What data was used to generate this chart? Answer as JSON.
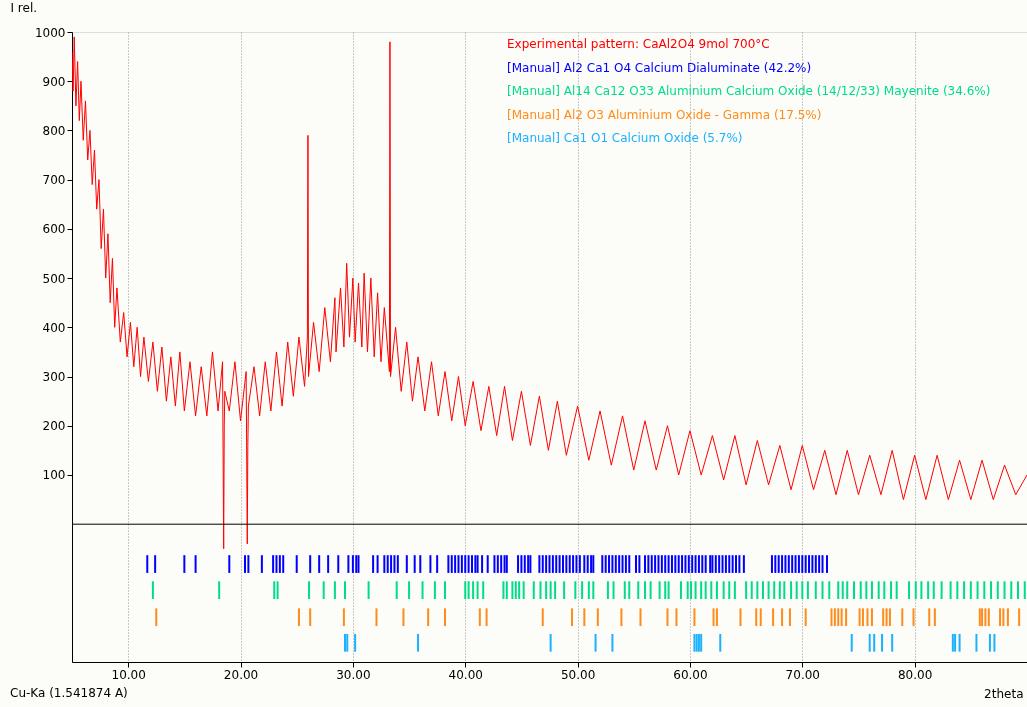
{
  "chart_data": {
    "type": "line",
    "xlabel": "2theta",
    "ylabel": "I rel.",
    "annotations": [
      "Cu-Ka (1.541874 A)"
    ],
    "xlim": [
      5,
      90
    ],
    "ylim": [
      -280,
      1000
    ],
    "xticks": [
      {
        "value": 10,
        "label": "10.00"
      },
      {
        "value": 20,
        "label": "20.00"
      },
      {
        "value": 30,
        "label": "30.00"
      },
      {
        "value": 40,
        "label": "40.00"
      },
      {
        "value": 50,
        "label": "50.00"
      },
      {
        "value": 60,
        "label": "60.00"
      },
      {
        "value": 70,
        "label": "70.00"
      },
      {
        "value": 80,
        "label": "80.00"
      }
    ],
    "yticks": [
      100,
      200,
      300,
      400,
      500,
      600,
      700,
      800,
      900,
      1000
    ],
    "grid": "x",
    "legend": "top right",
    "ref_lines": [
      {
        "axis": "y",
        "value": 0,
        "color": "#000000"
      }
    ],
    "series": [
      {
        "name": "Experimental pattern: CaAl2O4 9mol 700°C",
        "color": "#ff0000",
        "x": [
          5.0,
          5.1,
          5.2,
          5.35,
          5.5,
          5.65,
          5.8,
          6.0,
          6.2,
          6.4,
          6.6,
          6.8,
          7.0,
          7.2,
          7.4,
          7.6,
          7.8,
          8.0,
          8.2,
          8.4,
          8.6,
          8.8,
          9.0,
          9.3,
          9.6,
          9.9,
          10.2,
          10.5,
          10.8,
          11.1,
          11.4,
          11.8,
          12.2,
          12.6,
          13.0,
          13.4,
          13.8,
          14.2,
          14.6,
          15.0,
          15.5,
          16.0,
          16.5,
          17.0,
          17.5,
          18.0,
          18.4,
          18.5,
          18.55,
          18.6,
          19.0,
          19.5,
          20.0,
          20.5,
          20.6,
          20.65,
          20.7,
          21.2,
          21.7,
          22.2,
          22.7,
          23.2,
          23.7,
          24.2,
          24.7,
          25.2,
          25.7,
          25.95,
          26.0,
          26.05,
          26.5,
          27.0,
          27.5,
          28.0,
          28.4,
          28.5,
          28.9,
          29.2,
          29.45,
          29.7,
          30.0,
          30.2,
          30.5,
          30.8,
          31.0,
          31.3,
          31.6,
          31.9,
          32.2,
          32.5,
          32.8,
          33.25,
          33.3,
          33.35,
          33.8,
          34.3,
          34.8,
          35.3,
          35.8,
          36.4,
          37.0,
          37.6,
          38.2,
          38.8,
          39.4,
          40.0,
          40.7,
          41.4,
          42.1,
          42.8,
          43.5,
          44.2,
          45.0,
          45.8,
          46.6,
          47.4,
          48.2,
          49.0,
          50.0,
          51.0,
          52.0,
          53.0,
          54.0,
          55.0,
          56.0,
          57.0,
          58.0,
          59.0,
          60.0,
          61.0,
          62.0,
          63.0,
          64.0,
          65.0,
          66.0,
          67.0,
          68.0,
          69.0,
          70.0,
          71.0,
          72.0,
          73.0,
          74.0,
          75.0,
          76.0,
          77.0,
          78.0,
          79.0,
          80.0,
          81.0,
          82.0,
          83.0,
          84.0,
          85.0,
          86.0,
          87.0,
          88.0,
          89.0,
          90.0
        ],
        "values": [
          960,
          880,
          990,
          850,
          940,
          820,
          900,
          780,
          860,
          740,
          800,
          690,
          760,
          640,
          700,
          560,
          640,
          500,
          590,
          450,
          540,
          400,
          480,
          370,
          430,
          340,
          410,
          320,
          400,
          300,
          380,
          290,
          370,
          270,
          360,
          250,
          340,
          240,
          350,
          230,
          330,
          220,
          320,
          220,
          350,
          230,
          330,
          -50,
          200,
          270,
          230,
          330,
          210,
          310,
          -40,
          160,
          240,
          320,
          220,
          330,
          230,
          350,
          240,
          370,
          260,
          380,
          280,
          380,
          790,
          300,
          410,
          310,
          440,
          330,
          460,
          350,
          480,
          360,
          530,
          380,
          500,
          370,
          490,
          360,
          510,
          350,
          500,
          340,
          470,
          330,
          440,
          310,
          980,
          300,
          400,
          270,
          370,
          250,
          340,
          230,
          330,
          220,
          310,
          210,
          300,
          200,
          290,
          190,
          280,
          180,
          280,
          170,
          270,
          160,
          260,
          150,
          250,
          140,
          240,
          130,
          230,
          120,
          220,
          110,
          210,
          110,
          200,
          100,
          190,
          100,
          180,
          90,
          180,
          80,
          170,
          80,
          160,
          70,
          160,
          70,
          150,
          60,
          150,
          60,
          140,
          60,
          150,
          50,
          140,
          50,
          140,
          50,
          130,
          50,
          130,
          50,
          120,
          60,
          100
        ]
      },
      {
        "name": "[Manual] Al2 Ca1 O4 Calcium Dialuminate (42.2%)",
        "type": "bar",
        "color": "#0000ff",
        "base": [
          -99,
          -99,
          -99,
          -99,
          -99,
          -99,
          -99,
          -99,
          -99,
          -99,
          -99,
          -99,
          -99,
          -99,
          -99,
          -99,
          -99,
          -99,
          -99,
          -99,
          -99,
          -99,
          -99,
          -99,
          -99,
          -99,
          -99,
          -99,
          -99,
          -99,
          -99,
          -99,
          -99,
          -99,
          -99,
          -99,
          -99,
          -99,
          -99,
          -99,
          -99,
          -99,
          -99,
          -99,
          -99,
          -99,
          -99,
          -99,
          -99,
          -99,
          -99,
          -99,
          -99,
          -99,
          -99,
          -99,
          -99,
          -99,
          -99,
          -99,
          -99,
          -99,
          -99,
          -99,
          -99,
          -99,
          -99,
          -99,
          -99,
          -99,
          -99,
          -99,
          -99,
          -99,
          -99,
          -99,
          -99,
          -99,
          -99,
          -99,
          -99,
          -99,
          -99,
          -99,
          -99,
          -99,
          -99,
          -99,
          -99,
          -99,
          -99,
          -99,
          -99,
          -99,
          -99,
          -99,
          -99,
          -99,
          -99,
          -99,
          -99,
          -99,
          -99,
          -99,
          -99,
          -99,
          -99,
          -99,
          -99,
          -99,
          -99,
          -99,
          -99,
          -99,
          -99,
          -99,
          -99,
          -99,
          -99,
          -99,
          -99,
          -99,
          -99,
          -99,
          -99,
          -99,
          -99,
          -99,
          -99,
          -99
        ],
        "x": [
          11.7,
          12.4,
          15.0,
          16.0,
          19.0,
          20.4,
          20.7,
          21.9,
          22.9,
          23.2,
          23.5,
          23.8,
          25.0,
          26.2,
          27.0,
          27.8,
          28.7,
          29.6,
          30.0,
          30.3,
          30.5,
          31.8,
          32.2,
          32.8,
          33.1,
          33.4,
          33.7,
          34.0,
          34.8,
          35.5,
          36.0,
          36.9,
          37.5,
          38.5,
          38.8,
          39.1,
          39.4,
          39.7,
          40.0,
          40.3,
          40.6,
          40.9,
          41.1,
          41.5,
          42.0,
          42.6,
          42.9,
          43.2,
          43.5,
          43.7,
          44.7,
          45.0,
          45.3,
          45.6,
          45.8,
          46.6,
          46.9,
          47.2,
          47.5,
          47.8,
          48.1,
          48.4,
          48.7,
          49.0,
          49.3,
          49.6,
          49.9,
          50.2,
          50.6,
          50.9,
          51.2,
          51.4,
          52.2,
          52.5,
          52.8,
          53.1,
          53.4,
          53.7,
          54.0,
          54.3,
          54.6,
          55.2,
          55.5,
          56.0,
          56.3,
          56.6,
          56.9,
          57.2,
          57.5,
          57.8,
          58.1,
          58.4,
          58.7,
          59.0,
          59.3,
          59.6,
          59.9,
          60.2,
          60.5,
          60.8,
          61.1,
          61.4,
          61.8,
          62.0,
          62.3,
          62.6,
          62.9,
          63.2,
          63.5,
          63.8,
          64.1,
          64.4,
          64.8,
          67.3,
          67.6,
          67.9,
          68.2,
          68.5,
          68.8,
          69.1,
          69.4,
          69.7,
          70.0,
          70.3,
          70.6,
          70.9,
          71.2,
          71.5,
          71.8,
          72.2
        ],
        "values": [
          36,
          36,
          36,
          36,
          36,
          36,
          36,
          36,
          36,
          36,
          36,
          36,
          36,
          36,
          36,
          36,
          36,
          36,
          36,
          36,
          36,
          36,
          36,
          36,
          36,
          36,
          36,
          36,
          36,
          36,
          36,
          36,
          36,
          36,
          36,
          36,
          36,
          36,
          36,
          36,
          36,
          36,
          36,
          36,
          36,
          36,
          36,
          36,
          36,
          36,
          36,
          36,
          36,
          36,
          36,
          36,
          36,
          36,
          36,
          36,
          36,
          36,
          36,
          36,
          36,
          36,
          36,
          36,
          36,
          36,
          36,
          36,
          36,
          36,
          36,
          36,
          36,
          36,
          36,
          36,
          36,
          36,
          36,
          36,
          36,
          36,
          36,
          36,
          36,
          36,
          36,
          36,
          36,
          36,
          36,
          36,
          36,
          36,
          36,
          36,
          36,
          36,
          36,
          36,
          36,
          36,
          36,
          36,
          36,
          36,
          36,
          36,
          36,
          36,
          36,
          36,
          36,
          36,
          36,
          36,
          36,
          36,
          36,
          36,
          36,
          36,
          36,
          36,
          36,
          36
        ]
      },
      {
        "name": "[Manual] Al14 Ca12 O33 Aluminium Calcium Oxide (14/12/33) Mayenite (34.6%)",
        "type": "bar",
        "color": "#00dd88",
        "base": [
          -152,
          -152,
          -152,
          -152,
          -152,
          -152,
          -152,
          -152,
          -152,
          -152,
          -152,
          -152,
          -152,
          -152,
          -152,
          -152,
          -152,
          -152,
          -152,
          -152,
          -152,
          -152,
          -152,
          -152,
          -152,
          -152,
          -152,
          -152,
          -152,
          -152,
          -152,
          -152,
          -152,
          -152,
          -152,
          -152,
          -152,
          -152,
          -152,
          -152,
          -152,
          -152,
          -152,
          -152,
          -152,
          -152,
          -152,
          -152,
          -152,
          -152,
          -152,
          -152,
          -152,
          -152,
          -152,
          -152,
          -152,
          -152,
          -152,
          -152,
          -152,
          -152,
          -152,
          -152,
          -152,
          -152,
          -152,
          -152,
          -152,
          -152,
          -152,
          -152,
          -152,
          -152,
          -152,
          -152,
          -152,
          -152,
          -152,
          -152,
          -152,
          -152,
          -152,
          -152,
          -152,
          -152,
          -152,
          -152,
          -152,
          -152,
          -152,
          -152,
          -152,
          -152,
          -152,
          -152,
          -152,
          -152,
          -152,
          -152
        ],
        "x": [
          12.2,
          18.1,
          23.0,
          23.3,
          26.1,
          27.4,
          28.4,
          29.3,
          31.4,
          33.9,
          35.0,
          36.2,
          37.3,
          38.2,
          40.0,
          40.3,
          40.7,
          41.1,
          41.6,
          43.4,
          43.7,
          44.2,
          44.5,
          44.8,
          45.2,
          46.1,
          46.7,
          47.2,
          47.6,
          48.0,
          48.8,
          49.8,
          50.4,
          51.0,
          51.4,
          52.7,
          53.2,
          54.2,
          54.6,
          55.4,
          56.0,
          56.5,
          57.3,
          57.8,
          58.1,
          59.2,
          59.8,
          60.1,
          60.5,
          61.0,
          61.4,
          61.9,
          62.4,
          63.0,
          63.5,
          64.0,
          65.0,
          65.5,
          66.0,
          66.5,
          67.0,
          67.5,
          68.0,
          68.4,
          69.0,
          69.5,
          70.0,
          70.5,
          71.2,
          71.8,
          72.4,
          73.2,
          73.6,
          74.0,
          74.6,
          75.2,
          75.7,
          76.2,
          76.8,
          77.3,
          77.9,
          78.4,
          79.5,
          80.1,
          80.6,
          81.2,
          81.7,
          82.4,
          83.2,
          83.8,
          84.4,
          85.0,
          85.6,
          86.2,
          86.8,
          87.4,
          88.0,
          88.6,
          89.2,
          89.8
        ],
        "values": [
          36,
          36,
          36,
          36,
          36,
          36,
          36,
          36,
          36,
          36,
          36,
          36,
          36,
          36,
          36,
          36,
          36,
          36,
          36,
          36,
          36,
          36,
          36,
          36,
          36,
          36,
          36,
          36,
          36,
          36,
          36,
          36,
          36,
          36,
          36,
          36,
          36,
          36,
          36,
          36,
          36,
          36,
          36,
          36,
          36,
          36,
          36,
          36,
          36,
          36,
          36,
          36,
          36,
          36,
          36,
          36,
          36,
          36,
          36,
          36,
          36,
          36,
          36,
          36,
          36,
          36,
          36,
          36,
          36,
          36,
          36,
          36,
          36,
          36,
          36,
          36,
          36,
          36,
          36,
          36,
          36,
          36,
          36,
          36,
          36,
          36,
          36,
          36,
          36,
          36,
          36,
          36,
          36,
          36,
          36,
          36,
          36,
          36,
          36,
          36
        ]
      },
      {
        "name": "[Manual] Al2 O3 Aluminium Oxide - Gamma (17.5%)",
        "type": "bar",
        "color": "#ff8c1a",
        "base": [
          -207,
          -207,
          -207,
          -207,
          -207,
          -207,
          -207,
          -207,
          -207,
          -207,
          -207,
          -207,
          -207,
          -207,
          -207,
          -207,
          -207,
          -207,
          -207,
          -207,
          -207,
          -207,
          -207,
          -207,
          -207,
          -207,
          -207,
          -207,
          -207,
          -207,
          -207,
          -207,
          -207,
          -207,
          -207,
          -207,
          -207,
          -207,
          -207,
          -207,
          -207,
          -207,
          -207,
          -207,
          -207,
          -207,
          -207,
          -207,
          -207,
          -207,
          -207,
          -207
        ],
        "x": [
          12.5,
          25.2,
          26.2,
          29.2,
          32.1,
          34.5,
          36.7,
          38.2,
          41.3,
          41.9,
          46.9,
          49.5,
          50.6,
          51.8,
          53.9,
          55.6,
          58.0,
          58.8,
          60.4,
          62.1,
          62.4,
          64.5,
          65.9,
          66.3,
          67.4,
          68.2,
          68.9,
          70.3,
          72.6,
          72.9,
          73.2,
          73.5,
          73.9,
          75.1,
          75.4,
          75.8,
          76.2,
          77.2,
          77.5,
          77.8,
          78.9,
          79.9,
          81.3,
          81.8,
          85.8,
          86.0,
          86.3,
          86.6,
          87.6,
          87.9,
          88.3,
          89.3
        ],
        "values": [
          36,
          36,
          36,
          36,
          36,
          36,
          36,
          36,
          36,
          36,
          36,
          36,
          36,
          36,
          36,
          36,
          36,
          36,
          36,
          36,
          36,
          36,
          36,
          36,
          36,
          36,
          36,
          36,
          36,
          36,
          36,
          36,
          36,
          36,
          36,
          36,
          36,
          36,
          36,
          36,
          36,
          36,
          36,
          36,
          36,
          36,
          36,
          36,
          36,
          36,
          36,
          36
        ]
      },
      {
        "name": "[Manual] Ca1 O1 Calcium Oxide (5.7%)",
        "type": "bar",
        "color": "#1ab2ff",
        "base": [
          -259,
          -259,
          -259,
          -259,
          -259,
          -259,
          -259,
          -259,
          -259,
          -259,
          -259,
          -259,
          -259,
          -259,
          -259,
          -259,
          -259,
          -259,
          -259,
          -259,
          -259,
          -259,
          -259
        ],
        "x": [
          29.3,
          29.5,
          30.2,
          35.8,
          47.6,
          51.6,
          53.1,
          60.4,
          60.6,
          60.8,
          61.0,
          62.7,
          74.4,
          76.0,
          76.4,
          77.1,
          78.0,
          83.4,
          83.6,
          84.0,
          85.5,
          86.7,
          87.1
        ],
        "values": [
          36,
          36,
          36,
          36,
          36,
          36,
          36,
          36,
          36,
          36,
          36,
          36,
          36,
          36,
          36,
          36,
          36,
          36,
          36,
          36,
          36,
          36,
          36
        ]
      }
    ]
  }
}
